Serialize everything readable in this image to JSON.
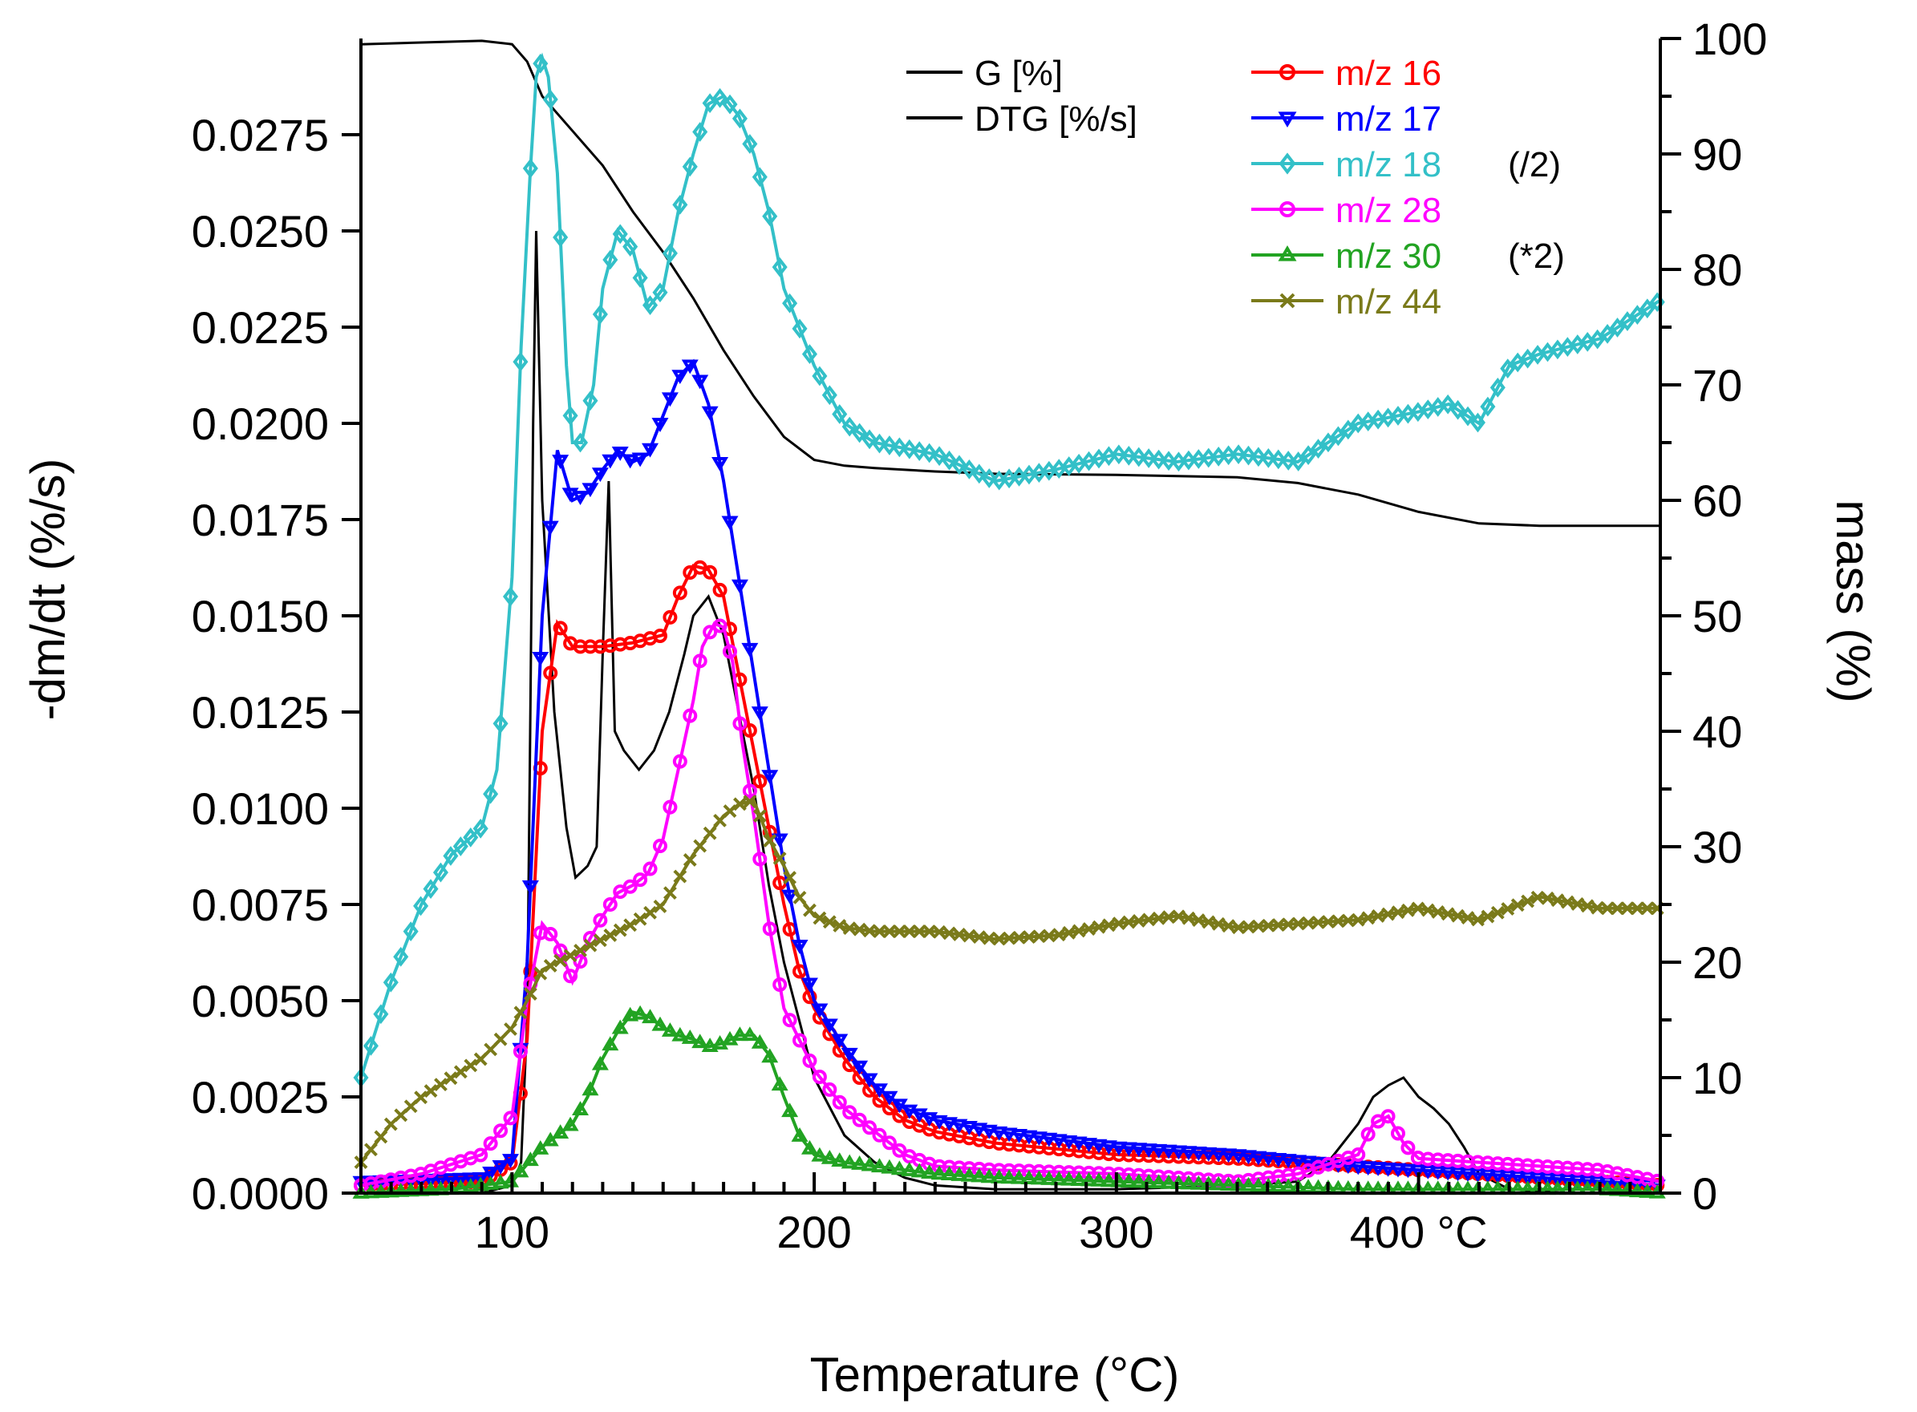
{
  "chart_data": {
    "type": "line",
    "title": "",
    "xlabel": "Temperature (°C)",
    "ylabel_left": "-dm/dt (%/s)",
    "ylabel_right": "mass (%)",
    "xlim": [
      50,
      480
    ],
    "ylim_left": [
      0,
      0.03
    ],
    "ylim_right": [
      0,
      100
    ],
    "x_ticks": [
      "100",
      "200",
      "300",
      "400 °C"
    ],
    "x_tick_values": [
      100,
      200,
      300,
      400
    ],
    "y_left_ticks": [
      "0.0000",
      "0.0025",
      "0.0050",
      "0.0075",
      "0.0100",
      "0.0125",
      "0.0150",
      "0.0175",
      "0.0200",
      "0.0225",
      "0.0250",
      "0.0275"
    ],
    "y_left_tick_values": [
      0,
      0.0025,
      0.005,
      0.0075,
      0.01,
      0.0125,
      0.015,
      0.0175,
      0.02,
      0.0225,
      0.025,
      0.0275
    ],
    "y_right_ticks": [
      "0",
      "10",
      "20",
      "30",
      "40",
      "50",
      "60",
      "70",
      "80",
      "90",
      "100"
    ],
    "y_right_tick_values": [
      0,
      10,
      20,
      30,
      40,
      50,
      60,
      70,
      80,
      90,
      100
    ],
    "grid": false,
    "legend_position": "top-right",
    "legend_annotations": [
      {
        "text": "(/2)",
        "series": "m/z 18"
      },
      {
        "text": "(*2)",
        "series": "m/z 30"
      }
    ],
    "series": [
      {
        "name": "G [%]",
        "axis": "right",
        "color": "#000000",
        "marker": "none",
        "x": [
          50,
          90,
          100,
          105,
          110,
          120,
          130,
          140,
          150,
          160,
          170,
          180,
          190,
          200,
          210,
          220,
          240,
          260,
          300,
          340,
          360,
          380,
          400,
          420,
          440,
          460,
          480
        ],
        "y": [
          99.5,
          99.8,
          99.5,
          98,
          95,
          92,
          89,
          85,
          81.5,
          77.5,
          73,
          69,
          65.5,
          63.5,
          63,
          62.8,
          62.5,
          62.3,
          62.2,
          62,
          61.5,
          60.5,
          59,
          58,
          57.8,
          57.8,
          57.8
        ]
      },
      {
        "name": "DTG [%/s]",
        "axis": "left",
        "color": "#000000",
        "marker": "none",
        "x": [
          50,
          90,
          100,
          103,
          105,
          106,
          107,
          108,
          110,
          114,
          118,
          121,
          125,
          128,
          130,
          132,
          134,
          137,
          142,
          147,
          152,
          157,
          160,
          165,
          170,
          175,
          180,
          185,
          190,
          195,
          200,
          210,
          220,
          230,
          240,
          260,
          300,
          340,
          360,
          370,
          380,
          385,
          390,
          395,
          400,
          405,
          410,
          415,
          420,
          430,
          450,
          480
        ],
        "y": [
          0,
          0,
          0.0002,
          0.0008,
          0.0045,
          0.012,
          0.02,
          0.025,
          0.018,
          0.0125,
          0.0095,
          0.0082,
          0.0085,
          0.009,
          0.014,
          0.0185,
          0.012,
          0.0115,
          0.011,
          0.0115,
          0.0125,
          0.014,
          0.015,
          0.0155,
          0.0145,
          0.0125,
          0.0105,
          0.008,
          0.006,
          0.0045,
          0.003,
          0.0015,
          0.0008,
          0.0004,
          0.0002,
          0.0001,
          0.0001,
          0.0002,
          0.0003,
          0.0008,
          0.0018,
          0.0025,
          0.0028,
          0.003,
          0.0025,
          0.0022,
          0.0018,
          0.0012,
          0.0005,
          0.0001,
          0,
          0
        ]
      },
      {
        "name": "m/z 16",
        "axis": "left",
        "color": "#ff0000",
        "marker": "circle",
        "x": [
          50,
          90,
          100,
          105,
          110,
          115,
          120,
          130,
          140,
          150,
          155,
          160,
          165,
          170,
          175,
          180,
          185,
          190,
          195,
          200,
          210,
          220,
          230,
          240,
          260,
          300,
          340,
          380,
          420,
          460,
          480
        ],
        "y": [
          0.0002,
          0.0003,
          0.0008,
          0.004,
          0.012,
          0.0148,
          0.0142,
          0.0142,
          0.0143,
          0.0145,
          0.0155,
          0.0163,
          0.0162,
          0.0155,
          0.0135,
          0.0115,
          0.0095,
          0.0075,
          0.0058,
          0.0048,
          0.0035,
          0.0025,
          0.0019,
          0.0016,
          0.0013,
          0.001,
          0.0009,
          0.0007,
          0.0005,
          0.0003,
          0.0002
        ]
      },
      {
        "name": "m/z 17",
        "axis": "left",
        "color": "#0000ff",
        "marker": "triangle-down",
        "x": [
          50,
          90,
          100,
          105,
          110,
          115,
          120,
          125,
          130,
          135,
          140,
          145,
          150,
          155,
          160,
          165,
          170,
          175,
          180,
          185,
          190,
          195,
          200,
          210,
          220,
          230,
          240,
          260,
          300,
          340,
          380,
          420,
          460,
          480
        ],
        "y": [
          0.0003,
          0.0004,
          0.0009,
          0.006,
          0.015,
          0.0193,
          0.018,
          0.0182,
          0.0188,
          0.0193,
          0.019,
          0.0192,
          0.0202,
          0.0212,
          0.0216,
          0.0205,
          0.0185,
          0.016,
          0.0135,
          0.011,
          0.0085,
          0.0065,
          0.005,
          0.0038,
          0.0028,
          0.0022,
          0.0019,
          0.0016,
          0.0012,
          0.001,
          0.0007,
          0.0005,
          0.0003,
          0.0002
        ]
      },
      {
        "name": "m/z 18",
        "axis": "left",
        "color": "#33c0c8",
        "marker": "diamond",
        "x": [
          50,
          60,
          70,
          80,
          90,
          95,
          100,
          103,
          106,
          108,
          110,
          112,
          115,
          118,
          120,
          123,
          127,
          130,
          135,
          140,
          145,
          150,
          155,
          160,
          165,
          170,
          175,
          180,
          185,
          190,
          200,
          210,
          220,
          240,
          260,
          280,
          300,
          320,
          340,
          360,
          370,
          380,
          400,
          410,
          420,
          430,
          440,
          460,
          480
        ],
        "y": [
          0.003,
          0.0055,
          0.0075,
          0.0088,
          0.0095,
          0.011,
          0.016,
          0.022,
          0.0265,
          0.029,
          0.0295,
          0.029,
          0.0265,
          0.0215,
          0.0195,
          0.0195,
          0.021,
          0.0235,
          0.025,
          0.0245,
          0.023,
          0.0235,
          0.0255,
          0.027,
          0.0283,
          0.0285,
          0.028,
          0.027,
          0.0255,
          0.0235,
          0.0215,
          0.02,
          0.0195,
          0.0192,
          0.0185,
          0.0188,
          0.0192,
          0.019,
          0.0192,
          0.019,
          0.0195,
          0.02,
          0.0203,
          0.0205,
          0.02,
          0.0215,
          0.0218,
          0.0222,
          0.0232
        ]
      },
      {
        "name": "m/z 28",
        "axis": "left",
        "color": "#ff00ff",
        "marker": "circle",
        "x": [
          50,
          70,
          90,
          100,
          105,
          110,
          115,
          120,
          125,
          130,
          135,
          140,
          145,
          150,
          155,
          160,
          163,
          167,
          170,
          173,
          176,
          180,
          185,
          190,
          200,
          210,
          220,
          230,
          240,
          260,
          300,
          340,
          360,
          380,
          385,
          390,
          395,
          400,
          420,
          440,
          460,
          480
        ],
        "y": [
          0.0002,
          0.0005,
          0.001,
          0.002,
          0.005,
          0.007,
          0.0065,
          0.0055,
          0.0065,
          0.0072,
          0.0078,
          0.008,
          0.0083,
          0.0092,
          0.011,
          0.0128,
          0.0142,
          0.0148,
          0.0147,
          0.0138,
          0.0118,
          0.0098,
          0.007,
          0.0048,
          0.0032,
          0.0022,
          0.0016,
          0.001,
          0.0007,
          0.0006,
          0.0005,
          0.0003,
          0.0005,
          0.001,
          0.0018,
          0.002,
          0.0013,
          0.0009,
          0.0008,
          0.0007,
          0.0006,
          0.0003
        ]
      },
      {
        "name": "m/z 30",
        "axis": "left",
        "color": "#22a322",
        "marker": "triangle-up",
        "x": [
          50,
          80,
          100,
          110,
          120,
          125,
          130,
          135,
          140,
          145,
          150,
          155,
          160,
          165,
          170,
          175,
          180,
          185,
          190,
          195,
          200,
          210,
          220,
          240,
          260,
          300,
          340,
          380,
          420,
          460,
          480
        ],
        "y": [
          0,
          0.0001,
          0.0003,
          0.0012,
          0.0018,
          0.0025,
          0.0035,
          0.0042,
          0.0047,
          0.0046,
          0.0043,
          0.0041,
          0.004,
          0.0038,
          0.0039,
          0.0041,
          0.0041,
          0.0036,
          0.0025,
          0.0015,
          0.001,
          0.0008,
          0.0007,
          0.0005,
          0.0004,
          0.0003,
          0.0002,
          0.0001,
          0.0001,
          0.0001,
          0
        ]
      },
      {
        "name": "m/z 44",
        "axis": "left",
        "color": "#7a7a1a",
        "marker": "x",
        "x": [
          50,
          60,
          70,
          80,
          90,
          100,
          105,
          110,
          120,
          130,
          140,
          150,
          160,
          170,
          175,
          180,
          185,
          190,
          195,
          200,
          210,
          220,
          240,
          260,
          280,
          300,
          320,
          340,
          360,
          380,
          400,
          420,
          440,
          460,
          480
        ],
        "y": [
          0.0008,
          0.0018,
          0.0025,
          0.003,
          0.0035,
          0.0043,
          0.005,
          0.0058,
          0.0062,
          0.0066,
          0.007,
          0.0075,
          0.0088,
          0.0098,
          0.0101,
          0.0102,
          0.0092,
          0.0085,
          0.0077,
          0.0072,
          0.0069,
          0.0068,
          0.0068,
          0.0066,
          0.0067,
          0.007,
          0.0072,
          0.0069,
          0.007,
          0.0071,
          0.0074,
          0.0071,
          0.0077,
          0.0074,
          0.0074
        ]
      }
    ]
  }
}
